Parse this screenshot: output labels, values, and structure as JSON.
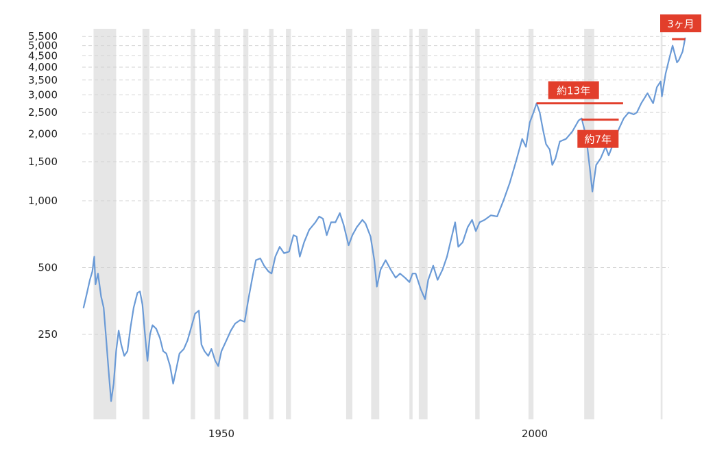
{
  "chart_data": {
    "type": "line",
    "title": "",
    "xlabel": "",
    "ylabel": "",
    "y_scale": "log",
    "x_range": [
      1928,
      2024
    ],
    "ylim": [
      130,
      5800
    ],
    "grid": "horizontal dashed",
    "legend": "none",
    "x_ticks": [
      {
        "value": 1950,
        "label": "1950"
      },
      {
        "value": 2000,
        "label": "2000"
      }
    ],
    "y_ticks": [
      {
        "value": 250,
        "label": "250"
      },
      {
        "value": 500,
        "label": "500"
      },
      {
        "value": 1000,
        "label": "1,000"
      },
      {
        "value": 1500,
        "label": "1,500"
      },
      {
        "value": 2000,
        "label": "2,000"
      },
      {
        "value": 2500,
        "label": "2,500"
      },
      {
        "value": 3000,
        "label": "3,000"
      },
      {
        "value": 3500,
        "label": "3,500"
      },
      {
        "value": 4000,
        "label": "4,000"
      },
      {
        "value": 4500,
        "label": "4,500"
      },
      {
        "value": 5000,
        "label": "5,000"
      },
      {
        "value": 5500,
        "label": "5,500"
      }
    ],
    "recessions": [
      [
        1929.6,
        1933.2
      ],
      [
        1937.4,
        1938.5
      ],
      [
        1945.1,
        1945.8
      ],
      [
        1948.9,
        1949.8
      ],
      [
        1953.5,
        1954.3
      ],
      [
        1957.6,
        1958.3
      ],
      [
        1960.3,
        1961.1
      ],
      [
        1969.9,
        1970.9
      ],
      [
        1973.9,
        1975.2
      ],
      [
        1980.0,
        1980.5
      ],
      [
        1981.5,
        1982.9
      ],
      [
        1990.5,
        1991.2
      ],
      [
        1999.0,
        1999.8
      ],
      [
        2007.9,
        2009.5
      ],
      [
        2020.1,
        2020.4
      ]
    ],
    "series": [
      {
        "color": "#6a9ad6",
        "points": [
          [
            1928.0,
            330
          ],
          [
            1928.5,
            380
          ],
          [
            1929.0,
            440
          ],
          [
            1929.4,
            480
          ],
          [
            1929.7,
            560
          ],
          [
            1929.9,
            420
          ],
          [
            1930.3,
            470
          ],
          [
            1930.8,
            370
          ],
          [
            1931.2,
            330
          ],
          [
            1931.6,
            240
          ],
          [
            1932.0,
            170
          ],
          [
            1932.4,
            125
          ],
          [
            1932.8,
            150
          ],
          [
            1933.2,
            210
          ],
          [
            1933.6,
            260
          ],
          [
            1934.0,
            225
          ],
          [
            1934.5,
            200
          ],
          [
            1935.0,
            210
          ],
          [
            1935.5,
            270
          ],
          [
            1936.0,
            330
          ],
          [
            1936.6,
            385
          ],
          [
            1937.0,
            390
          ],
          [
            1937.4,
            340
          ],
          [
            1937.8,
            250
          ],
          [
            1938.2,
            190
          ],
          [
            1938.6,
            250
          ],
          [
            1939.0,
            275
          ],
          [
            1939.6,
            265
          ],
          [
            1940.2,
            240
          ],
          [
            1940.7,
            210
          ],
          [
            1941.2,
            205
          ],
          [
            1941.8,
            180
          ],
          [
            1942.3,
            150
          ],
          [
            1942.8,
            175
          ],
          [
            1943.3,
            205
          ],
          [
            1944.0,
            215
          ],
          [
            1944.6,
            235
          ],
          [
            1945.2,
            270
          ],
          [
            1945.8,
            310
          ],
          [
            1946.4,
            320
          ],
          [
            1946.8,
            225
          ],
          [
            1947.3,
            210
          ],
          [
            1947.9,
            200
          ],
          [
            1948.4,
            215
          ],
          [
            1949.0,
            190
          ],
          [
            1949.5,
            180
          ],
          [
            1950.0,
            210
          ],
          [
            1950.8,
            235
          ],
          [
            1951.5,
            260
          ],
          [
            1952.2,
            280
          ],
          [
            1953.0,
            290
          ],
          [
            1953.7,
            285
          ],
          [
            1954.3,
            360
          ],
          [
            1955.0,
            460
          ],
          [
            1955.5,
            540
          ],
          [
            1956.2,
            550
          ],
          [
            1956.8,
            510
          ],
          [
            1957.5,
            480
          ],
          [
            1958.0,
            470
          ],
          [
            1958.6,
            560
          ],
          [
            1959.3,
            620
          ],
          [
            1960.0,
            580
          ],
          [
            1960.8,
            590
          ],
          [
            1961.5,
            700
          ],
          [
            1962.0,
            690
          ],
          [
            1962.5,
            560
          ],
          [
            1963.2,
            650
          ],
          [
            1964.0,
            740
          ],
          [
            1965.0,
            800
          ],
          [
            1965.6,
            850
          ],
          [
            1966.2,
            830
          ],
          [
            1966.8,
            700
          ],
          [
            1967.5,
            800
          ],
          [
            1968.2,
            800
          ],
          [
            1968.9,
            880
          ],
          [
            1969.5,
            780
          ],
          [
            1970.3,
            630
          ],
          [
            1970.9,
            700
          ],
          [
            1971.6,
            760
          ],
          [
            1972.5,
            820
          ],
          [
            1973.0,
            790
          ],
          [
            1973.8,
            690
          ],
          [
            1974.4,
            540
          ],
          [
            1974.8,
            410
          ],
          [
            1975.4,
            490
          ],
          [
            1976.2,
            540
          ],
          [
            1977.0,
            490
          ],
          [
            1977.8,
            450
          ],
          [
            1978.5,
            470
          ],
          [
            1979.3,
            450
          ],
          [
            1980.0,
            430
          ],
          [
            1980.5,
            470
          ],
          [
            1981.0,
            470
          ],
          [
            1981.8,
            400
          ],
          [
            1982.5,
            360
          ],
          [
            1983.0,
            440
          ],
          [
            1983.8,
            510
          ],
          [
            1984.5,
            440
          ],
          [
            1985.3,
            490
          ],
          [
            1986.0,
            560
          ],
          [
            1986.6,
            660
          ],
          [
            1987.3,
            800
          ],
          [
            1987.8,
            620
          ],
          [
            1988.5,
            650
          ],
          [
            1989.3,
            760
          ],
          [
            1990.0,
            820
          ],
          [
            1990.6,
            730
          ],
          [
            1991.2,
            800
          ],
          [
            1992.0,
            820
          ],
          [
            1993.0,
            860
          ],
          [
            1994.0,
            850
          ],
          [
            1995.0,
            1000
          ],
          [
            1996.0,
            1200
          ],
          [
            1997.0,
            1500
          ],
          [
            1998.0,
            1900
          ],
          [
            1998.6,
            1750
          ],
          [
            1999.2,
            2250
          ],
          [
            1999.8,
            2500
          ],
          [
            2000.3,
            2750
          ],
          [
            2000.8,
            2500
          ],
          [
            2001.3,
            2100
          ],
          [
            2001.8,
            1800
          ],
          [
            2002.4,
            1700
          ],
          [
            2002.8,
            1450
          ],
          [
            2003.3,
            1550
          ],
          [
            2004.0,
            1850
          ],
          [
            2005.0,
            1900
          ],
          [
            2006.0,
            2050
          ],
          [
            2007.0,
            2300
          ],
          [
            2007.5,
            2350
          ],
          [
            2008.2,
            1950
          ],
          [
            2008.8,
            1400
          ],
          [
            2009.2,
            1100
          ],
          [
            2009.8,
            1450
          ],
          [
            2010.5,
            1550
          ],
          [
            2011.3,
            1750
          ],
          [
            2011.8,
            1600
          ],
          [
            2012.5,
            1800
          ],
          [
            2013.4,
            2100
          ],
          [
            2014.2,
            2350
          ],
          [
            2015.0,
            2500
          ],
          [
            2015.8,
            2450
          ],
          [
            2016.3,
            2500
          ],
          [
            2017.0,
            2750
          ],
          [
            2018.0,
            3050
          ],
          [
            2018.9,
            2750
          ],
          [
            2019.5,
            3250
          ],
          [
            2020.1,
            3450
          ],
          [
            2020.3,
            2950
          ],
          [
            2020.9,
            3750
          ],
          [
            2021.5,
            4400
          ],
          [
            2022.0,
            5000
          ],
          [
            2022.7,
            4200
          ],
          [
            2023.0,
            4300
          ],
          [
            2023.6,
            4700
          ],
          [
            2024.0,
            5400
          ]
        ]
      }
    ],
    "annotations": [
      {
        "label": "約13年",
        "y": 2750,
        "x_start": 2000.3,
        "x_end": 2014.1,
        "box_x": 2006.2,
        "box_y": 3150
      },
      {
        "label": "約7年",
        "y": 2320,
        "x_start": 2007.5,
        "x_end": 2013.4,
        "box_x": 2010.1,
        "box_y": 1900
      },
      {
        "label": "3ヶ月",
        "y": 5350,
        "x_start": 2021.9,
        "x_end": 2024.0,
        "box_x": 2023.3,
        "box_y": 6300
      }
    ],
    "annotation_color": "#e23e2b"
  }
}
